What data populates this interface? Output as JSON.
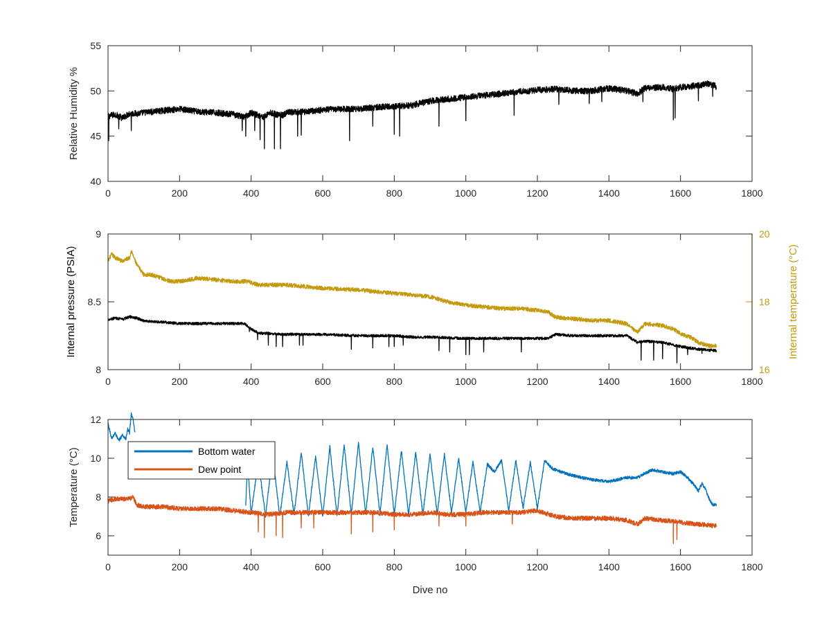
{
  "chart_data": [
    {
      "type": "line",
      "xlabel": "",
      "ylabel": "Relative Humidity %",
      "xlim": [
        0,
        1800
      ],
      "ylim": [
        40,
        55
      ],
      "xticks": [
        0,
        200,
        400,
        600,
        800,
        1000,
        1200,
        1400,
        1600,
        1800
      ],
      "yticks": [
        40,
        45,
        50,
        55
      ],
      "grid": false,
      "series": [
        {
          "color": "#000000",
          "x": [
            0,
            20,
            40,
            60,
            80,
            100,
            150,
            200,
            250,
            300,
            350,
            380,
            400,
            420,
            437,
            450,
            470,
            490,
            500,
            550,
            600,
            650,
            700,
            750,
            800,
            850,
            900,
            950,
            1000,
            1050,
            1100,
            1150,
            1200,
            1250,
            1300,
            1350,
            1400,
            1450,
            1480,
            1500,
            1550,
            1580,
            1600,
            1650,
            1680,
            1700
          ],
          "y": [
            47.2,
            47.4,
            47.0,
            47.5,
            47.5,
            47.6,
            47.8,
            48.0,
            47.7,
            47.6,
            47.4,
            47.1,
            47.6,
            47.3,
            47.1,
            47.6,
            47.4,
            47.3,
            47.6,
            47.7,
            47.9,
            48.0,
            48.0,
            48.2,
            48.3,
            48.4,
            48.9,
            49.1,
            49.3,
            49.5,
            49.7,
            49.9,
            50.1,
            50.2,
            50.0,
            50.0,
            50.3,
            50.0,
            49.7,
            50.3,
            50.4,
            50.2,
            50.4,
            50.6,
            50.8,
            50.5
          ],
          "dips": [
            {
              "x": 2,
              "y": 44.5
            },
            {
              "x": 30,
              "y": 45.8
            },
            {
              "x": 65,
              "y": 45.6
            },
            {
              "x": 375,
              "y": 45.6
            },
            {
              "x": 385,
              "y": 45.0
            },
            {
              "x": 410,
              "y": 45.6
            },
            {
              "x": 425,
              "y": 44.6
            },
            {
              "x": 437,
              "y": 43.6
            },
            {
              "x": 465,
              "y": 43.6
            },
            {
              "x": 482,
              "y": 43.6
            },
            {
              "x": 530,
              "y": 45.0
            },
            {
              "x": 540,
              "y": 45.1
            },
            {
              "x": 675,
              "y": 44.5
            },
            {
              "x": 740,
              "y": 46.1
            },
            {
              "x": 800,
              "y": 45.2
            },
            {
              "x": 815,
              "y": 45.0
            },
            {
              "x": 925,
              "y": 46.1
            },
            {
              "x": 1000,
              "y": 46.7
            },
            {
              "x": 1135,
              "y": 47.3
            },
            {
              "x": 1260,
              "y": 48.5
            },
            {
              "x": 1345,
              "y": 48.6
            },
            {
              "x": 1380,
              "y": 48.8
            },
            {
              "x": 1495,
              "y": 48.8
            },
            {
              "x": 1580,
              "y": 46.8
            },
            {
              "x": 1585,
              "y": 47.0
            },
            {
              "x": 1650,
              "y": 48.9
            },
            {
              "x": 1690,
              "y": 49.4
            }
          ],
          "noise": 0.35
        }
      ]
    },
    {
      "type": "line",
      "xlabel": "",
      "ylabel": "Internal pressure (PSIA)",
      "y2label": "Internal temperature (°C)",
      "xlim": [
        0,
        1800
      ],
      "ylim": [
        8,
        9
      ],
      "y2lim": [
        16,
        20
      ],
      "xticks": [
        0,
        200,
        400,
        600,
        800,
        1000,
        1200,
        1400,
        1600,
        1800
      ],
      "yticks": [
        8,
        8.5,
        9
      ],
      "y2ticks": [
        16,
        18,
        20
      ],
      "grid": false,
      "series": [
        {
          "axis": "right",
          "color": "#c49a0e",
          "x": [
            0,
            10,
            20,
            40,
            60,
            65,
            80,
            100,
            120,
            150,
            175,
            200,
            250,
            300,
            350,
            390,
            420,
            500,
            600,
            700,
            800,
            850,
            900,
            950,
            1000,
            1050,
            1100,
            1150,
            1200,
            1230,
            1250,
            1300,
            1350,
            1400,
            1450,
            1480,
            1500,
            1550,
            1580,
            1600,
            1630,
            1650,
            1680,
            1700
          ],
          "y": [
            19.2,
            19.4,
            19.3,
            19.2,
            19.3,
            19.5,
            19.1,
            18.8,
            18.8,
            18.7,
            18.6,
            18.6,
            18.7,
            18.65,
            18.6,
            18.6,
            18.5,
            18.5,
            18.4,
            18.35,
            18.25,
            18.2,
            18.15,
            18.0,
            17.9,
            17.85,
            17.8,
            17.8,
            17.75,
            17.7,
            17.55,
            17.5,
            17.45,
            17.45,
            17.35,
            17.1,
            17.35,
            17.3,
            17.2,
            17.05,
            16.95,
            16.8,
            16.7,
            16.7
          ],
          "noise": 0.06
        },
        {
          "axis": "left",
          "color": "#000000",
          "x": [
            0,
            20,
            40,
            60,
            80,
            100,
            150,
            200,
            250,
            300,
            350,
            380,
            400,
            420,
            500,
            600,
            700,
            800,
            850,
            900,
            1000,
            1100,
            1200,
            1230,
            1250,
            1300,
            1350,
            1400,
            1450,
            1480,
            1500,
            1550,
            1600,
            1650,
            1700
          ],
          "y": [
            8.37,
            8.38,
            8.37,
            8.39,
            8.38,
            8.36,
            8.35,
            8.34,
            8.34,
            8.34,
            8.34,
            8.34,
            8.3,
            8.27,
            8.26,
            8.26,
            8.25,
            8.25,
            8.24,
            8.24,
            8.23,
            8.23,
            8.23,
            8.23,
            8.26,
            8.25,
            8.25,
            8.25,
            8.25,
            8.2,
            8.21,
            8.2,
            8.17,
            8.15,
            8.14
          ],
          "dips": [
            {
              "x": 395,
              "y": 8.28
            },
            {
              "x": 418,
              "y": 8.22
            },
            {
              "x": 448,
              "y": 8.18
            },
            {
              "x": 470,
              "y": 8.17
            },
            {
              "x": 488,
              "y": 8.17
            },
            {
              "x": 535,
              "y": 8.18
            },
            {
              "x": 545,
              "y": 8.18
            },
            {
              "x": 680,
              "y": 8.15
            },
            {
              "x": 740,
              "y": 8.16
            },
            {
              "x": 785,
              "y": 8.17
            },
            {
              "x": 800,
              "y": 8.17
            },
            {
              "x": 825,
              "y": 8.18
            },
            {
              "x": 925,
              "y": 8.14
            },
            {
              "x": 955,
              "y": 8.13
            },
            {
              "x": 1000,
              "y": 8.11
            },
            {
              "x": 1010,
              "y": 8.11
            },
            {
              "x": 1050,
              "y": 8.13
            },
            {
              "x": 1155,
              "y": 8.13
            },
            {
              "x": 1490,
              "y": 8.07
            },
            {
              "x": 1525,
              "y": 8.07
            },
            {
              "x": 1550,
              "y": 8.08
            },
            {
              "x": 1590,
              "y": 8.05
            },
            {
              "x": 1620,
              "y": 8.11
            },
            {
              "x": 1660,
              "y": 8.12
            }
          ],
          "noise": 0.01
        }
      ]
    },
    {
      "type": "line",
      "xlabel": "Dive no",
      "ylabel": "Temperature (°C)",
      "xlim": [
        0,
        1800
      ],
      "ylim": [
        5,
        12
      ],
      "xticks": [
        0,
        200,
        400,
        600,
        800,
        1000,
        1200,
        1400,
        1600,
        1800
      ],
      "yticks": [
        6,
        8,
        10,
        12
      ],
      "grid": false,
      "legend": "upper-left",
      "series": [
        {
          "name": "Bottom water",
          "color": "#0072bd",
          "x": [
            0,
            10,
            20,
            30,
            40,
            50,
            55,
            60,
            65,
            70,
            75,
            385
          ],
          "y": [
            11.8,
            11.0,
            11.3,
            10.9,
            11.2,
            11.0,
            11.5,
            11.3,
            12.3,
            12.0,
            11.3,
            11.3
          ],
          "gap_after": 75,
          "segments": [
            {
              "x": [
                385,
                390,
                400,
                420,
                440,
                460,
                480,
                500,
                520,
                540,
                560,
                580,
                600,
                620,
                640,
                660,
                680,
                700,
                720,
                740,
                760,
                780,
                800,
                820,
                840,
                860,
                880,
                900,
                920,
                940,
                960,
                980,
                1000,
                1020,
                1040,
                1060,
                1080,
                1100,
                1120,
                1140,
                1160,
                1180,
                1200,
                1220,
                1240,
                1250,
                1300,
                1350,
                1400,
                1450,
                1480,
                1500,
                1520,
                1550,
                1580,
                1600,
                1620,
                1640,
                1650,
                1660,
                1670,
                1680,
                1690,
                1700
              ],
              "y": [
                7.6,
                9.8,
                7.1,
                9.9,
                7.0,
                10.2,
                7.0,
                9.8,
                7.1,
                10.3,
                7.0,
                10.1,
                7.0,
                10.6,
                7.0,
                10.7,
                7.1,
                10.8,
                7.1,
                10.6,
                7.1,
                10.7,
                7.1,
                10.4,
                7.1,
                10.3,
                7.1,
                10.2,
                7.1,
                10.2,
                7.2,
                10.0,
                7.2,
                9.8,
                7.2,
                9.7,
                9.3,
                9.9,
                7.3,
                9.9,
                7.4,
                9.8,
                7.4,
                9.9,
                9.5,
                9.4,
                9.1,
                8.9,
                8.8,
                9.0,
                9.0,
                9.2,
                9.4,
                9.3,
                9.2,
                9.3,
                9.0,
                8.6,
                8.3,
                8.7,
                8.4,
                7.9,
                7.6,
                7.6
              ]
            }
          ],
          "noise": 0.08
        },
        {
          "name": "Dew point",
          "color": "#d95319",
          "x": [
            0,
            20,
            40,
            60,
            70,
            80,
            100,
            150,
            200,
            250,
            300,
            350,
            400,
            450,
            500,
            550,
            600,
            650,
            700,
            750,
            800,
            850,
            900,
            950,
            1000,
            1050,
            1100,
            1150,
            1200,
            1250,
            1300,
            1350,
            1400,
            1450,
            1480,
            1500,
            1550,
            1600,
            1650,
            1700
          ],
          "y": [
            7.8,
            7.9,
            7.9,
            7.9,
            8.0,
            7.6,
            7.5,
            7.5,
            7.4,
            7.4,
            7.4,
            7.3,
            7.2,
            7.1,
            7.2,
            7.2,
            7.2,
            7.2,
            7.2,
            7.2,
            7.1,
            7.1,
            7.2,
            7.1,
            7.1,
            7.2,
            7.2,
            7.2,
            7.3,
            7.0,
            6.9,
            6.9,
            6.9,
            6.8,
            6.6,
            6.9,
            6.8,
            6.7,
            6.6,
            6.5
          ],
          "dips": [
            {
              "x": 420,
              "y": 6.2
            },
            {
              "x": 437,
              "y": 5.9
            },
            {
              "x": 470,
              "y": 6.0
            },
            {
              "x": 488,
              "y": 5.9
            },
            {
              "x": 540,
              "y": 6.4
            },
            {
              "x": 575,
              "y": 6.4
            },
            {
              "x": 680,
              "y": 6.1
            },
            {
              "x": 740,
              "y": 6.2
            },
            {
              "x": 800,
              "y": 6.3
            },
            {
              "x": 925,
              "y": 6.5
            },
            {
              "x": 1000,
              "y": 6.5
            },
            {
              "x": 1130,
              "y": 6.6
            },
            {
              "x": 1580,
              "y": 5.6
            },
            {
              "x": 1590,
              "y": 5.8
            }
          ],
          "noise": 0.12
        }
      ]
    }
  ]
}
